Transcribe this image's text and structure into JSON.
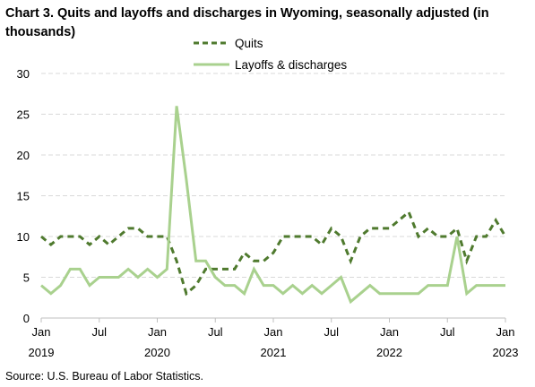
{
  "title": "Chart 3. Quits and layoffs and discharges in Wyoming, seasonally adjusted (in thousands)",
  "source": "Source: U.S. Bureau of Labor Statistics.",
  "colors": {
    "quits": "#4f7a2e",
    "layoffs": "#a9d18e",
    "grid": "#d9d9d9",
    "axis": "#bfbfbf"
  },
  "chart_data": {
    "type": "line",
    "title": "Chart 3. Quits and layoffs and discharges in Wyoming, seasonally adjusted (in thousands)",
    "xlabel": "",
    "ylabel": "",
    "ylim": [
      0,
      30
    ],
    "yticks": [
      0,
      5,
      10,
      15,
      20,
      25,
      30
    ],
    "grid": true,
    "legend_position": "top-center",
    "x": [
      "2019-01",
      "2019-02",
      "2019-03",
      "2019-04",
      "2019-05",
      "2019-06",
      "2019-07",
      "2019-08",
      "2019-09",
      "2019-10",
      "2019-11",
      "2019-12",
      "2020-01",
      "2020-02",
      "2020-03",
      "2020-04",
      "2020-05",
      "2020-06",
      "2020-07",
      "2020-08",
      "2020-09",
      "2020-10",
      "2020-11",
      "2020-12",
      "2021-01",
      "2021-02",
      "2021-03",
      "2021-04",
      "2021-05",
      "2021-06",
      "2021-07",
      "2021-08",
      "2021-09",
      "2021-10",
      "2021-11",
      "2021-12",
      "2022-01",
      "2022-02",
      "2022-03",
      "2022-04",
      "2022-05",
      "2022-06",
      "2022-07",
      "2022-08",
      "2022-09",
      "2022-10",
      "2022-11",
      "2022-12",
      "2023-01"
    ],
    "x_tick_labels": [
      {
        "month": "Jan",
        "year": "2019"
      },
      {
        "month": "Jul",
        "year": ""
      },
      {
        "month": "Jan",
        "year": "2020"
      },
      {
        "month": "Jul",
        "year": ""
      },
      {
        "month": "Jan",
        "year": "2021"
      },
      {
        "month": "Jul",
        "year": ""
      },
      {
        "month": "Jan",
        "year": "2022"
      },
      {
        "month": "Jul",
        "year": ""
      },
      {
        "month": "Jan",
        "year": "2023"
      }
    ],
    "series": [
      {
        "name": "Quits",
        "style": "dashed",
        "values": [
          10,
          9,
          10,
          10,
          10,
          9,
          10,
          9,
          10,
          11,
          11,
          10,
          10,
          10,
          7,
          3,
          4,
          6,
          6,
          6,
          6,
          8,
          7,
          7,
          8,
          10,
          10,
          10,
          10,
          9,
          11,
          10,
          7,
          10,
          11,
          11,
          11,
          12,
          13,
          10,
          11,
          10,
          10,
          11,
          7,
          10,
          10,
          12,
          10
        ]
      },
      {
        "name": "Layoffs & discharges",
        "style": "solid",
        "values": [
          4,
          3,
          4,
          6,
          6,
          4,
          5,
          5,
          5,
          6,
          5,
          6,
          5,
          6,
          26,
          17,
          7,
          7,
          5,
          4,
          4,
          3,
          6,
          4,
          4,
          3,
          4,
          3,
          4,
          3,
          4,
          5,
          2,
          3,
          4,
          3,
          3,
          3,
          3,
          3,
          4,
          4,
          4,
          10,
          3,
          4,
          4,
          4,
          4
        ]
      }
    ]
  }
}
